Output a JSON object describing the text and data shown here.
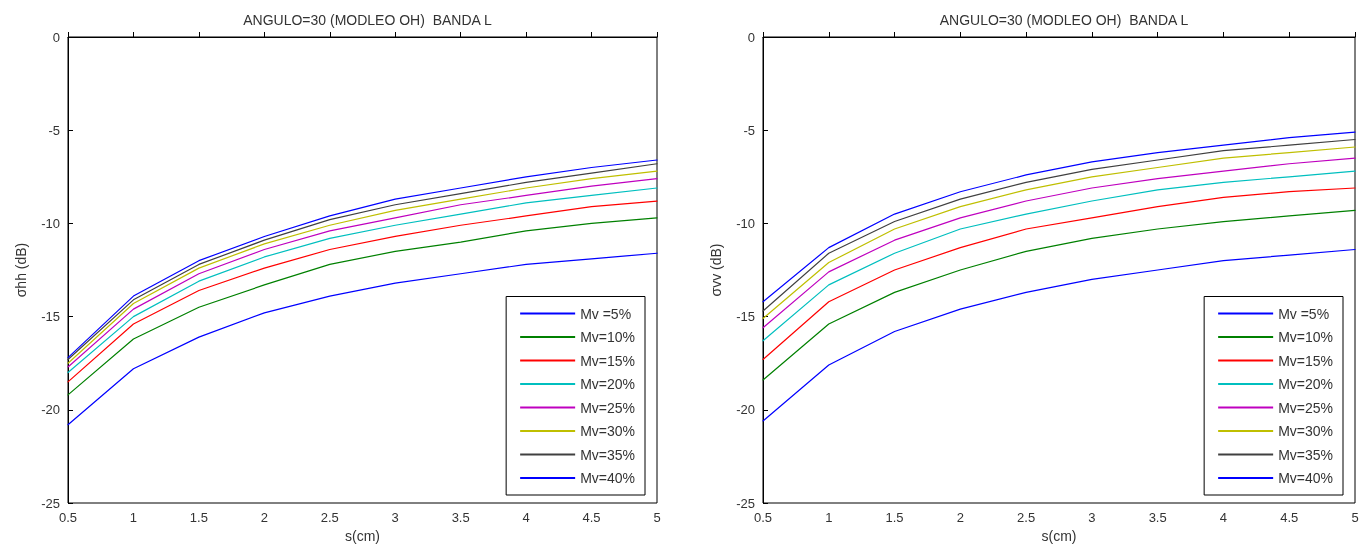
{
  "chart_data": [
    {
      "type": "line",
      "title": "ANGULO=30 (MODLEO OH)  BANDA L",
      "xlabel": "s(cm)",
      "ylabel": "σhh (dB)",
      "x": [
        0.5,
        1,
        1.5,
        2,
        2.5,
        3,
        3.5,
        4,
        4.5,
        5
      ],
      "xlim": [
        0.5,
        5
      ],
      "xticks": [
        0.5,
        1,
        1.5,
        2,
        2.5,
        3,
        3.5,
        4,
        4.5,
        5
      ],
      "ylim": [
        -25,
        0
      ],
      "yticks": [
        -25,
        -20,
        -15,
        -10,
        -5,
        0
      ],
      "grid": false,
      "legend": "bottom right",
      "marker": "none",
      "line_style": "solid",
      "series": [
        {
          "name": "Mv =5%",
          "color": "#0000ff",
          "values": [
            -20.8,
            -17.8,
            -16.1,
            -14.8,
            -13.9,
            -13.2,
            -12.7,
            -12.2,
            -11.9,
            -11.6
          ]
        },
        {
          "name": "Mv=10%",
          "color": "#008000",
          "values": [
            -19.2,
            -16.2,
            -14.5,
            -13.3,
            -12.2,
            -11.5,
            -11.0,
            -10.4,
            -10.0,
            -9.7
          ]
        },
        {
          "name": "Mv=15%",
          "color": "#ff0000",
          "values": [
            -18.5,
            -15.4,
            -13.6,
            -12.4,
            -11.4,
            -10.7,
            -10.1,
            -9.6,
            -9.1,
            -8.8
          ]
        },
        {
          "name": "Mv=20%",
          "color": "#00bfbf",
          "values": [
            -18.0,
            -15.0,
            -13.1,
            -11.8,
            -10.8,
            -10.1,
            -9.5,
            -8.9,
            -8.5,
            -8.1
          ]
        },
        {
          "name": "Mv=25%",
          "color": "#bf00bf",
          "values": [
            -17.7,
            -14.6,
            -12.7,
            -11.4,
            -10.4,
            -9.7,
            -9.0,
            -8.5,
            -8.0,
            -7.6
          ]
        },
        {
          "name": "Mv=30%",
          "color": "#bfbf00",
          "values": [
            -17.5,
            -14.3,
            -12.4,
            -11.1,
            -10.1,
            -9.3,
            -8.7,
            -8.1,
            -7.6,
            -7.2
          ]
        },
        {
          "name": "Mv=35%",
          "color": "#404040",
          "values": [
            -17.3,
            -14.1,
            -12.2,
            -10.9,
            -9.8,
            -9.0,
            -8.4,
            -7.8,
            -7.3,
            -6.8
          ]
        },
        {
          "name": "Mv=40%",
          "color": "#0000ff",
          "values": [
            -17.2,
            -13.9,
            -12.0,
            -10.7,
            -9.6,
            -8.7,
            -8.1,
            -7.5,
            -7.0,
            -6.6
          ]
        }
      ]
    },
    {
      "type": "line",
      "title": "ANGULO=30 (MODLEO OH)  BANDA L",
      "xlabel": "s(cm)",
      "ylabel": "σvv (dB)",
      "x": [
        0.5,
        1,
        1.5,
        2,
        2.5,
        3,
        3.5,
        4,
        4.5,
        5
      ],
      "xlim": [
        0.5,
        5
      ],
      "xticks": [
        0.5,
        1,
        1.5,
        2,
        2.5,
        3,
        3.5,
        4,
        4.5,
        5
      ],
      "ylim": [
        -25,
        0
      ],
      "yticks": [
        -25,
        -20,
        -15,
        -10,
        -5,
        0
      ],
      "grid": false,
      "legend": "bottom right",
      "marker": "none",
      "line_style": "solid",
      "series": [
        {
          "name": "Mv =5%",
          "color": "#0000ff",
          "values": [
            -20.6,
            -17.6,
            -15.8,
            -14.6,
            -13.7,
            -13.0,
            -12.5,
            -12.0,
            -11.7,
            -11.4
          ]
        },
        {
          "name": "Mv=10%",
          "color": "#008000",
          "values": [
            -18.4,
            -15.4,
            -13.7,
            -12.5,
            -11.5,
            -10.8,
            -10.3,
            -9.9,
            -9.6,
            -9.3
          ]
        },
        {
          "name": "Mv=15%",
          "color": "#ff0000",
          "values": [
            -17.3,
            -14.2,
            -12.5,
            -11.3,
            -10.3,
            -9.7,
            -9.1,
            -8.6,
            -8.3,
            -8.1
          ]
        },
        {
          "name": "Mv=20%",
          "color": "#00bfbf",
          "values": [
            -16.3,
            -13.3,
            -11.6,
            -10.3,
            -9.5,
            -8.8,
            -8.2,
            -7.8,
            -7.5,
            -7.2
          ]
        },
        {
          "name": "Mv=25%",
          "color": "#bf00bf",
          "values": [
            -15.6,
            -12.6,
            -10.9,
            -9.7,
            -8.8,
            -8.1,
            -7.6,
            -7.2,
            -6.8,
            -6.5
          ]
        },
        {
          "name": "Mv=30%",
          "color": "#bfbf00",
          "values": [
            -15.1,
            -12.1,
            -10.3,
            -9.1,
            -8.2,
            -7.5,
            -7.0,
            -6.5,
            -6.2,
            -5.9
          ]
        },
        {
          "name": "Mv=35%",
          "color": "#404040",
          "values": [
            -14.7,
            -11.6,
            -9.9,
            -8.7,
            -7.8,
            -7.1,
            -6.6,
            -6.1,
            -5.8,
            -5.5
          ]
        },
        {
          "name": "Mv=40%",
          "color": "#0000ff",
          "values": [
            -14.2,
            -11.3,
            -9.5,
            -8.3,
            -7.4,
            -6.7,
            -6.2,
            -5.8,
            -5.4,
            -5.1
          ]
        }
      ]
    }
  ]
}
